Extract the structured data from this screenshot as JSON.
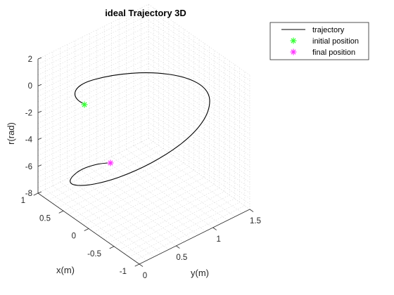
{
  "chart_data": {
    "type": "line",
    "title": "ideal Trajectory 3D",
    "xlabel": "x(m)",
    "ylabel": "y(m)",
    "zlabel": "r(rad)",
    "xlim": [
      -1,
      1
    ],
    "ylim": [
      0,
      1.5
    ],
    "zlim": [
      -8,
      2
    ],
    "x_ticks": [
      "1",
      "0.5",
      "0",
      "-0.5",
      "-1"
    ],
    "y_ticks": [
      "0",
      "0.5",
      "1",
      "1.5"
    ],
    "z_ticks": [
      "2",
      "0",
      "-2",
      "-4",
      "-6",
      "-8"
    ],
    "grid": true,
    "legend_position": "top-right outside",
    "series": [
      {
        "name": "trajectory",
        "color": "#000000",
        "style": "line"
      },
      {
        "name": "initial position",
        "color": "#33ff33",
        "style": "asterisk"
      },
      {
        "name": "final position",
        "color": "#ff33ff",
        "style": "asterisk"
      }
    ],
    "trajectory": {
      "description_params": {
        "start_angle_deg": 0,
        "end_angle_deg": 630,
        "z_start": 0,
        "z_end": -6.0
      }
    },
    "initial_position": {
      "x": 0,
      "y": 0,
      "z": 0
    },
    "final_position": {
      "x": 0,
      "y": 0.75,
      "z": -6
    }
  }
}
